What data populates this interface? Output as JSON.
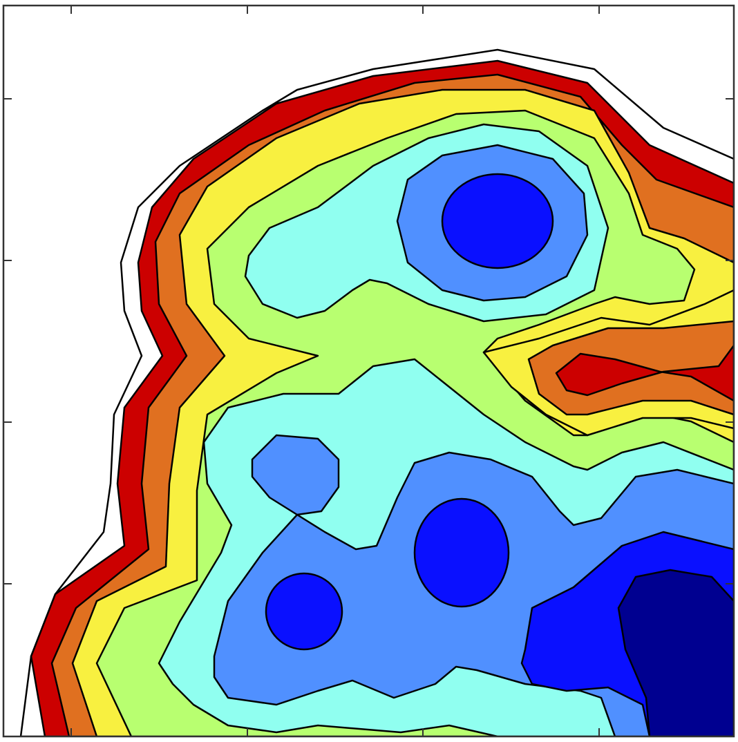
{
  "chart_data": {
    "type": "contour",
    "colors": [
      "#ffffff",
      "#cc0000",
      "#e07020",
      "#f8f040",
      "#b8ff70",
      "#90fff0",
      "#5090ff",
      "#0a10ff",
      "#000090"
    ],
    "line_color": "#000000"
  }
}
